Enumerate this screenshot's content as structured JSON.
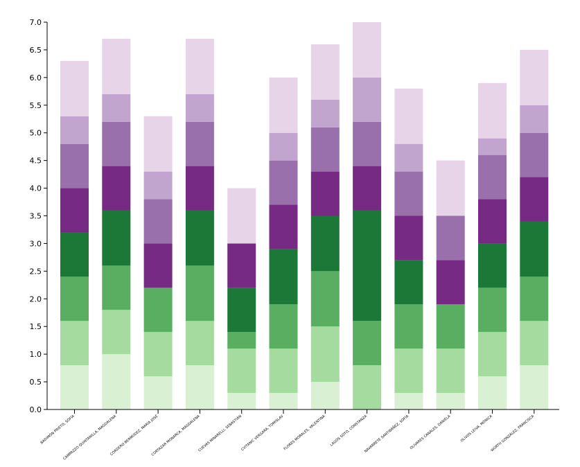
{
  "chart_data": {
    "type": "bar",
    "stacked": true,
    "title": "",
    "xlabel": "",
    "ylabel": "",
    "ylim": [
      0,
      7
    ],
    "yticks": [
      "0.0",
      "0.5",
      "1.0",
      "1.5",
      "2.0",
      "2.5",
      "3.0",
      "3.5",
      "4.0",
      "4.5",
      "5.0",
      "5.5",
      "6.0",
      "6.5",
      "7.0"
    ],
    "grid": false,
    "legend": "none",
    "categories": [
      "BADIMÓN PRIETO, SOFÍA",
      "CAMPAZZO QUINTANILLA, MAGDALENA",
      "CORDERO BERMÚDEZ, MARÍA JOSÉ",
      "CORTAZAR MONARCA, MAGDALENA",
      "CUEVAS MINARELLI, SEBASTIÁN",
      "CVITANIC VERGARA, TOMISLAV",
      "FLORES MORALES, VALENTINA",
      "LAGOS SOTO, CONSTANZA",
      "NAVARRETE SANTIBÁÑEZ, SOFÍA",
      "OLIVARES CANALES, DANIELA",
      "OLIVOS LEIVA, MÓNICA",
      "WÜRTH GONZÁLEZ, FRANCISCA"
    ],
    "series": [
      {
        "color": "#d9f0d3",
        "values": [
          0.8,
          1.0,
          0.6,
          0.8,
          0.3,
          0.3,
          0.5,
          0.0,
          0.3,
          0.3,
          0.6,
          0.8
        ]
      },
      {
        "color": "#a6dba0",
        "values": [
          0.8,
          0.8,
          0.8,
          0.8,
          0.8,
          0.8,
          1.0,
          0.8,
          0.8,
          0.8,
          0.8,
          0.8
        ]
      },
      {
        "color": "#5aae61",
        "values": [
          0.8,
          0.8,
          0.8,
          1.0,
          0.3,
          0.8,
          1.0,
          0.8,
          0.8,
          0.8,
          0.8,
          0.8
        ]
      },
      {
        "color": "#1b7837",
        "values": [
          0.8,
          1.0,
          0.0,
          1.0,
          0.8,
          1.0,
          1.0,
          2.0,
          0.8,
          0.0,
          0.8,
          1.0
        ]
      },
      {
        "color": "#762a83",
        "values": [
          0.8,
          0.8,
          0.8,
          0.8,
          0.8,
          0.8,
          0.8,
          0.8,
          0.8,
          0.8,
          0.8,
          0.8
        ]
      },
      {
        "color": "#9970ab",
        "values": [
          0.8,
          0.8,
          0.8,
          0.8,
          0.0,
          0.8,
          0.8,
          0.8,
          0.8,
          0.8,
          0.8,
          0.8
        ]
      },
      {
        "color": "#c2a5cf",
        "values": [
          0.5,
          0.5,
          0.5,
          0.5,
          0.0,
          0.5,
          0.5,
          0.8,
          0.5,
          0.0,
          0.3,
          0.5
        ]
      },
      {
        "color": "#e7d4e8",
        "values": [
          1.0,
          1.0,
          1.0,
          1.0,
          1.0,
          1.0,
          1.0,
          1.0,
          1.0,
          1.0,
          1.0,
          1.0
        ]
      }
    ]
  }
}
